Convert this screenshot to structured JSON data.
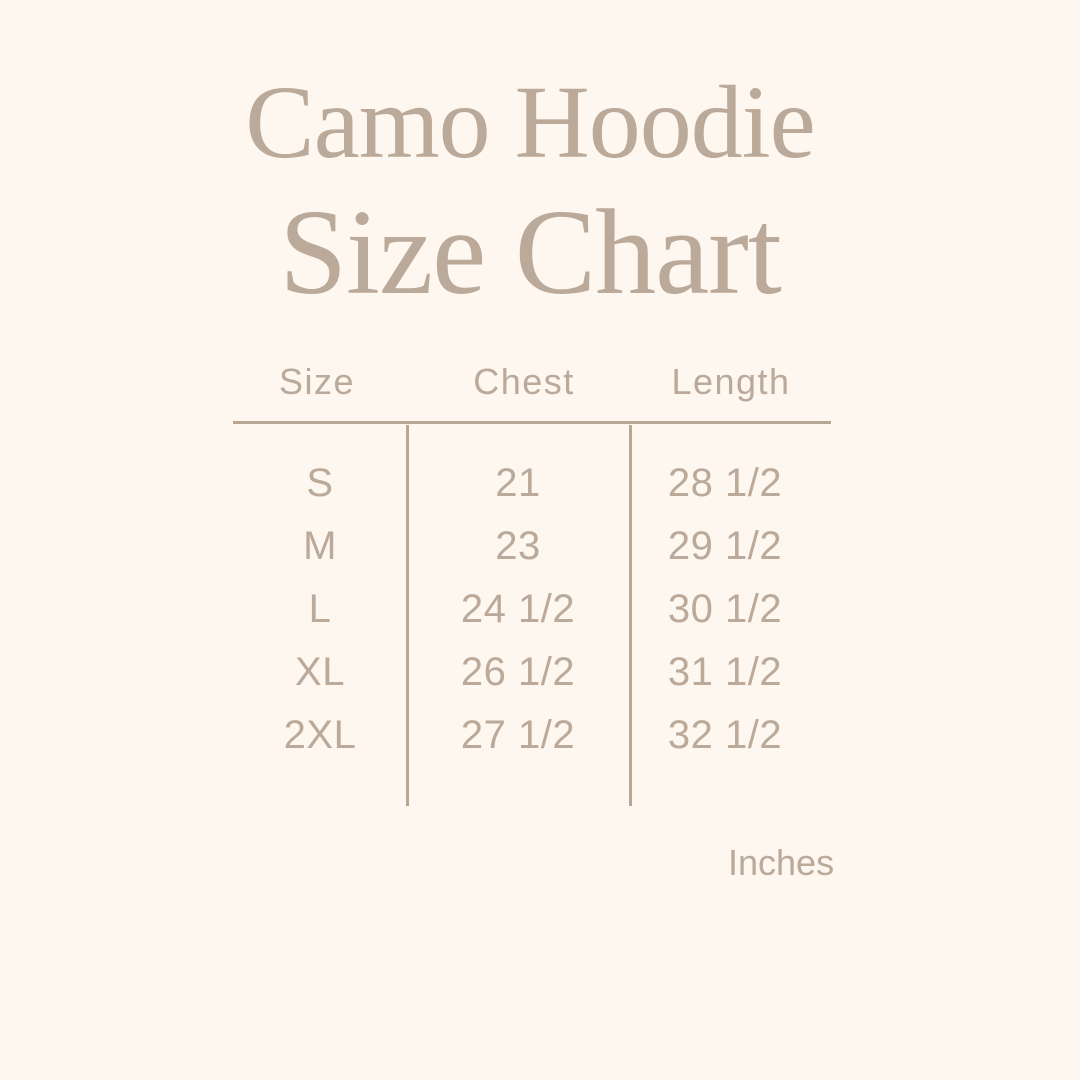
{
  "title": {
    "line1": "Camo Hoodie",
    "line2": "Size Chart"
  },
  "table": {
    "headers": [
      "Size",
      "Chest",
      "Length"
    ],
    "rows": [
      [
        "S",
        "21",
        "28 1/2"
      ],
      [
        "M",
        "23",
        "29 1/2"
      ],
      [
        "L",
        "24 1/2",
        "30 1/2"
      ],
      [
        "XL",
        "26 1/2",
        "31 1/2"
      ],
      [
        "2XL",
        "27 1/2",
        "32 1/2"
      ]
    ]
  },
  "units": "Inches",
  "colors": {
    "background": "#fdf7f0",
    "text": "#bba999",
    "lines": "#b9a796"
  }
}
